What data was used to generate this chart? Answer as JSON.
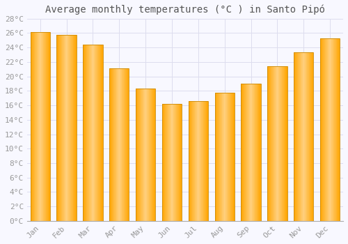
{
  "title": "Average monthly temperatures (°C ) in Santo Pipó",
  "months": [
    "Jan",
    "Feb",
    "Mar",
    "Apr",
    "May",
    "Jun",
    "Jul",
    "Aug",
    "Sep",
    "Oct",
    "Nov",
    "Dec"
  ],
  "values": [
    26.1,
    25.8,
    24.4,
    21.1,
    18.3,
    16.2,
    16.6,
    17.7,
    19.0,
    21.4,
    23.3,
    25.3
  ],
  "bar_color_main": "#FFA500",
  "bar_color_light": "#FFD080",
  "bar_edge_color": "#CC8800",
  "background_color": "#F8F8FF",
  "grid_color": "#DDDDEE",
  "text_color": "#999999",
  "title_color": "#555555",
  "ylim": [
    0,
    28
  ],
  "ytick_step": 2,
  "title_fontsize": 10,
  "tick_fontsize": 8,
  "font_family": "monospace"
}
